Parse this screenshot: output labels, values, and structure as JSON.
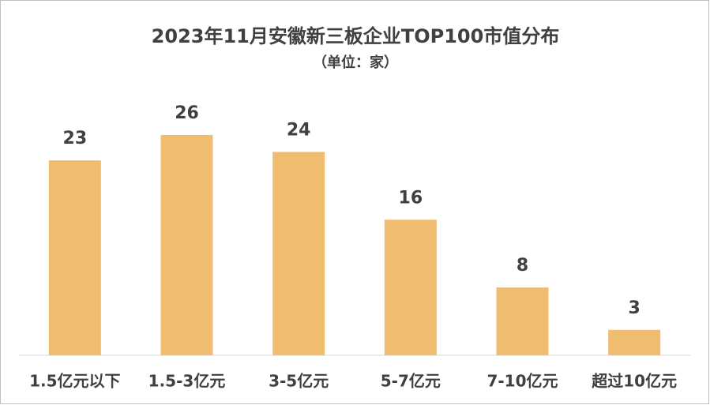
{
  "chart_data": {
    "type": "bar",
    "title": "2023年11月安徽新三板企业TOP100市值分布",
    "subtitle": "（单位：家）",
    "categories": [
      "1.5亿元以下",
      "1.5-3亿元",
      "3-5亿元",
      "5-7亿元",
      "7-10亿元",
      "超过10亿元"
    ],
    "values": [
      23,
      26,
      24,
      16,
      8,
      3
    ],
    "color": "#f0bc70"
  }
}
